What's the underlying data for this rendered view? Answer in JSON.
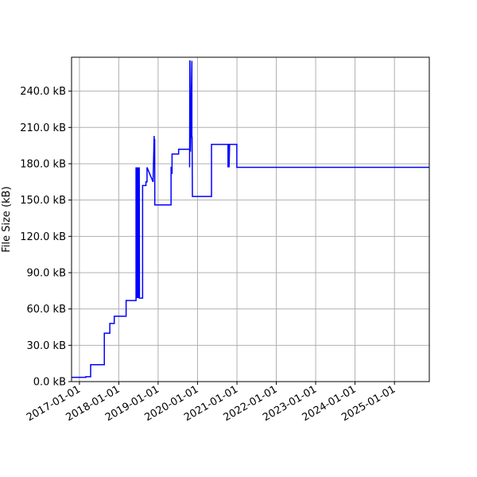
{
  "chart_data": {
    "type": "line",
    "title": "",
    "xlabel": "",
    "ylabel": "File Size (kB)",
    "grid": true,
    "legend": "none",
    "line_color": "#0000ff",
    "xlim": [
      "2016-10-20",
      "2025-11-20"
    ],
    "ylim": [
      0,
      268
    ],
    "x_ticks": [
      "2017-01-01",
      "2018-01-01",
      "2019-01-01",
      "2020-01-01",
      "2021-01-01",
      "2022-01-01",
      "2023-01-01",
      "2024-01-01",
      "2025-01-01"
    ],
    "y_ticks": [
      {
        "value": 0,
        "label": "0.0 kB"
      },
      {
        "value": 30,
        "label": "30.0 kB"
      },
      {
        "value": 60,
        "label": "60.0 kB"
      },
      {
        "value": 90,
        "label": "90.0 kB"
      },
      {
        "value": 120,
        "label": "120.0 kB"
      },
      {
        "value": 150,
        "label": "150.0 kB"
      },
      {
        "value": 180,
        "label": "180.0 kB"
      },
      {
        "value": 210,
        "label": "210.0 kB"
      },
      {
        "value": 240,
        "label": "240.0 kB"
      }
    ],
    "series": [
      {
        "x": [
          "2016-10-20",
          "2017-03-01",
          "2017-03-01",
          "2017-04-15",
          "2017-04-15",
          "2017-08-20",
          "2017-08-20",
          "2017-10-10",
          "2017-10-10",
          "2017-11-20",
          "2017-11-20",
          "2018-03-10",
          "2018-03-10",
          "2018-06-10",
          "2018-06-10",
          "2018-06-12",
          "2018-06-15",
          "2018-06-17",
          "2018-06-20",
          "2018-06-22",
          "2018-06-25",
          "2018-06-27",
          "2018-06-30",
          "2018-07-02",
          "2018-07-05",
          "2018-07-07",
          "2018-07-10",
          "2018-07-12",
          "2018-07-15",
          "2018-07-17",
          "2018-07-20",
          "2018-08-10",
          "2018-08-10",
          "2018-09-10",
          "2018-09-10",
          "2018-09-20",
          "2018-09-20",
          "2018-11-15",
          "2018-11-15",
          "2018-11-25",
          "2018-11-25",
          "2018-11-30",
          "2018-12-01",
          "2018-12-03",
          "2018-12-03",
          "2019-05-01",
          "2019-05-01",
          "2019-05-05",
          "2019-05-05",
          "2019-05-10",
          "2019-05-10",
          "2019-07-10",
          "2019-07-10",
          "2019-09-15",
          "2019-09-15",
          "2019-10-20",
          "2019-10-20",
          "2019-10-22",
          "2019-10-23",
          "2019-10-28",
          "2019-11-10",
          "2019-11-10",
          "2019-11-12",
          "2019-11-15",
          "2019-11-15",
          "2020-05-10",
          "2020-05-10",
          "2020-10-10",
          "2020-10-10",
          "2020-10-15",
          "2020-10-20",
          "2020-10-20",
          "2020-10-25",
          "2020-10-25",
          "2020-12-31",
          "2020-12-31",
          "2021-06-15",
          "2021-06-15",
          "2021-06-20",
          "2021-06-20",
          "2025-11-20"
        ],
        "y": [
          3.5,
          3.5,
          4,
          4,
          14,
          14,
          40,
          40,
          48,
          48,
          54,
          54,
          67,
          67,
          177,
          69,
          177,
          69,
          177,
          69,
          177,
          69,
          177,
          69,
          177,
          69,
          177,
          69,
          69,
          69,
          69,
          69,
          162,
          162,
          165,
          165,
          177,
          165,
          165,
          203,
          200,
          200,
          146,
          146,
          146,
          146,
          177,
          177,
          172,
          172,
          188,
          188,
          192,
          192,
          192,
          192,
          177,
          265,
          265,
          190,
          265,
          202,
          202,
          153,
          153,
          153,
          196,
          196,
          177,
          196,
          196,
          177,
          196,
          196,
          196,
          177,
          177,
          177,
          177,
          177,
          177
        ]
      }
    ]
  }
}
